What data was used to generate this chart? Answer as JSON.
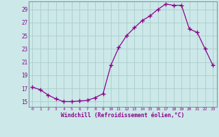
{
  "x": [
    0,
    1,
    2,
    3,
    4,
    5,
    6,
    7,
    8,
    9,
    10,
    11,
    12,
    13,
    14,
    15,
    16,
    17,
    18,
    19,
    20,
    21,
    22,
    23
  ],
  "y": [
    17.2,
    16.8,
    16.0,
    15.4,
    15.0,
    15.0,
    15.1,
    15.2,
    15.6,
    16.2,
    20.5,
    23.2,
    25.0,
    26.2,
    27.3,
    28.0,
    29.0,
    29.8,
    29.6,
    29.6,
    26.0,
    25.5,
    23.0,
    20.5
  ],
  "line_color": "#8b008b",
  "marker": "+",
  "marker_color": "#8b008b",
  "bg_color": "#cce8e8",
  "grid_color": "#aacccc",
  "xlabel": "Windchill (Refroidissement éolien,°C)",
  "ylabel_ticks": [
    15,
    17,
    19,
    21,
    23,
    25,
    27,
    29
  ],
  "xtick_labels": [
    "0",
    "1",
    "2",
    "3",
    "4",
    "5",
    "6",
    "7",
    "8",
    "9",
    "10",
    "11",
    "12",
    "13",
    "14",
    "15",
    "16",
    "17",
    "18",
    "19",
    "20",
    "21",
    "22",
    "23"
  ],
  "xlim": [
    -0.5,
    23.5
  ],
  "ylim": [
    14.2,
    30.2
  ]
}
